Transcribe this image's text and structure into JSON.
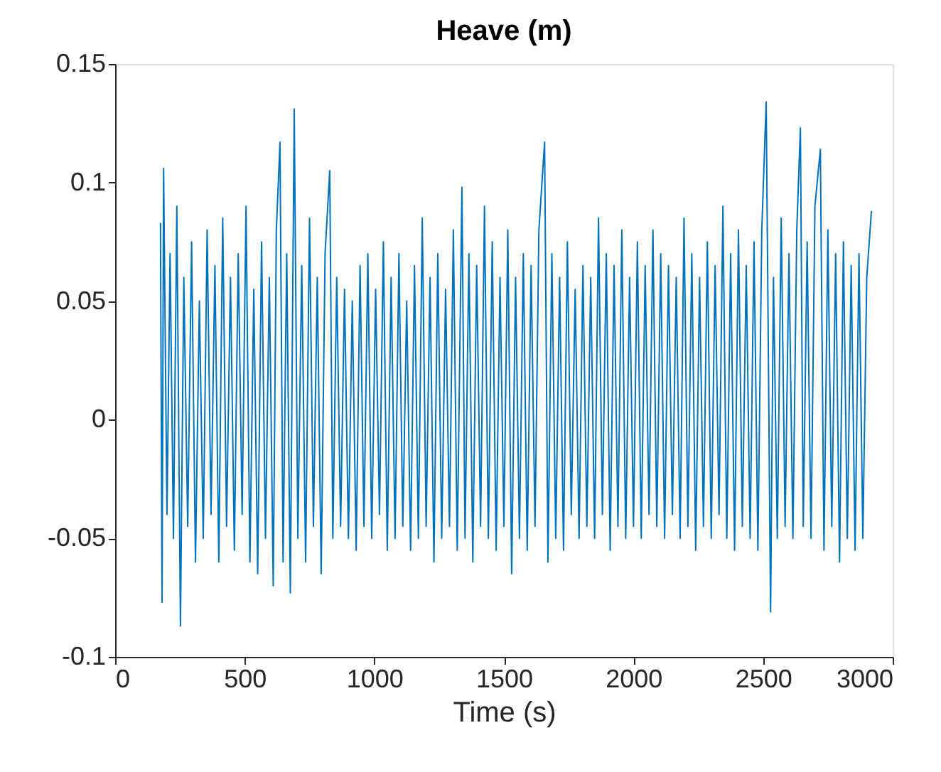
{
  "chart_data": {
    "type": "line",
    "title": "Heave (m)",
    "xlabel": "Time (s)",
    "xlim": [
      0,
      3000
    ],
    "xticks": [
      0,
      500,
      1000,
      1500,
      2000,
      2500,
      3000
    ],
    "ylim": [
      -0.1,
      0.15
    ],
    "yticks": [
      -0.1,
      -0.05,
      0,
      0.05,
      0.1,
      0.15
    ],
    "grid": false,
    "x": [
      175,
      181,
      187,
      200,
      212,
      225,
      238,
      252,
      265,
      280,
      295,
      310,
      325,
      340,
      355,
      370,
      385,
      400,
      415,
      430,
      445,
      460,
      475,
      490,
      505,
      520,
      535,
      550,
      565,
      580,
      595,
      610,
      622,
      636,
      648,
      662,
      676,
      691,
      705,
      720,
      735,
      750,
      765,
      780,
      795,
      810,
      828,
      840,
      855,
      870,
      885,
      900,
      915,
      930,
      945,
      960,
      975,
      990,
      1005,
      1020,
      1035,
      1050,
      1065,
      1080,
      1095,
      1110,
      1125,
      1140,
      1155,
      1170,
      1185,
      1200,
      1215,
      1230,
      1245,
      1260,
      1275,
      1290,
      1305,
      1320,
      1338,
      1350,
      1365,
      1380,
      1395,
      1410,
      1425,
      1440,
      1455,
      1470,
      1485,
      1500,
      1515,
      1530,
      1545,
      1560,
      1575,
      1590,
      1605,
      1620,
      1635,
      1657,
      1670,
      1685,
      1700,
      1715,
      1730,
      1745,
      1760,
      1775,
      1790,
      1805,
      1820,
      1835,
      1850,
      1865,
      1880,
      1895,
      1910,
      1925,
      1940,
      1955,
      1970,
      1985,
      2000,
      2015,
      2030,
      2045,
      2060,
      2075,
      2090,
      2105,
      2120,
      2135,
      2150,
      2165,
      2180,
      2195,
      2210,
      2225,
      2240,
      2255,
      2270,
      2285,
      2300,
      2315,
      2330,
      2345,
      2360,
      2375,
      2390,
      2405,
      2420,
      2435,
      2450,
      2465,
      2480,
      2495,
      2512,
      2529,
      2540,
      2555,
      2570,
      2585,
      2600,
      2615,
      2630,
      2644,
      2655,
      2670,
      2685,
      2700,
      2721,
      2735,
      2750,
      2765,
      2780,
      2795,
      2810,
      2825,
      2840,
      2855,
      2870,
      2885,
      2900,
      2918
    ],
    "series": [
      {
        "color": "#0072bd",
        "values": [
          0.083,
          -0.077,
          0.106,
          -0.04,
          0.07,
          -0.05,
          0.09,
          -0.087,
          0.06,
          -0.045,
          0.075,
          -0.06,
          0.05,
          -0.05,
          0.08,
          -0.04,
          0.065,
          -0.06,
          0.085,
          -0.045,
          0.06,
          -0.055,
          0.07,
          -0.04,
          0.09,
          -0.06,
          0.055,
          -0.065,
          0.075,
          -0.05,
          0.06,
          -0.07,
          0.08,
          0.117,
          -0.06,
          0.07,
          -0.073,
          0.131,
          -0.05,
          0.065,
          -0.06,
          0.085,
          -0.045,
          0.06,
          -0.065,
          0.07,
          0.105,
          -0.05,
          0.06,
          -0.045,
          0.055,
          -0.05,
          0.05,
          -0.055,
          0.065,
          -0.045,
          0.07,
          -0.05,
          0.055,
          -0.04,
          0.075,
          -0.055,
          0.06,
          -0.05,
          0.07,
          -0.045,
          0.05,
          -0.055,
          0.065,
          -0.05,
          0.085,
          -0.045,
          0.06,
          -0.06,
          0.07,
          -0.05,
          0.055,
          -0.045,
          0.08,
          -0.055,
          0.098,
          -0.05,
          0.07,
          -0.06,
          0.065,
          -0.045,
          0.09,
          -0.05,
          0.075,
          -0.055,
          0.06,
          -0.045,
          0.08,
          -0.065,
          0.06,
          -0.05,
          0.07,
          -0.055,
          0.065,
          -0.045,
          0.08,
          0.117,
          -0.06,
          0.07,
          -0.05,
          0.06,
          -0.055,
          0.075,
          -0.04,
          0.055,
          -0.05,
          0.065,
          -0.045,
          0.06,
          -0.05,
          0.085,
          -0.04,
          0.07,
          -0.055,
          0.065,
          -0.045,
          0.08,
          -0.05,
          0.06,
          -0.045,
          0.075,
          -0.05,
          0.065,
          -0.04,
          0.08,
          -0.045,
          0.07,
          -0.05,
          0.065,
          -0.04,
          0.06,
          -0.05,
          0.085,
          -0.045,
          0.07,
          -0.055,
          0.06,
          -0.045,
          0.075,
          -0.05,
          0.065,
          -0.04,
          0.09,
          -0.05,
          0.07,
          -0.055,
          0.08,
          -0.045,
          0.065,
          -0.05,
          0.075,
          -0.055,
          0.08,
          0.134,
          -0.081,
          0.06,
          -0.05,
          0.085,
          -0.045,
          0.07,
          -0.05,
          0.08,
          0.123,
          -0.045,
          0.075,
          -0.05,
          0.09,
          0.114,
          -0.055,
          0.08,
          -0.045,
          0.07,
          -0.06,
          0.075,
          -0.05,
          0.065,
          -0.055,
          0.07,
          -0.05,
          0.06,
          0.088
        ]
      }
    ]
  }
}
